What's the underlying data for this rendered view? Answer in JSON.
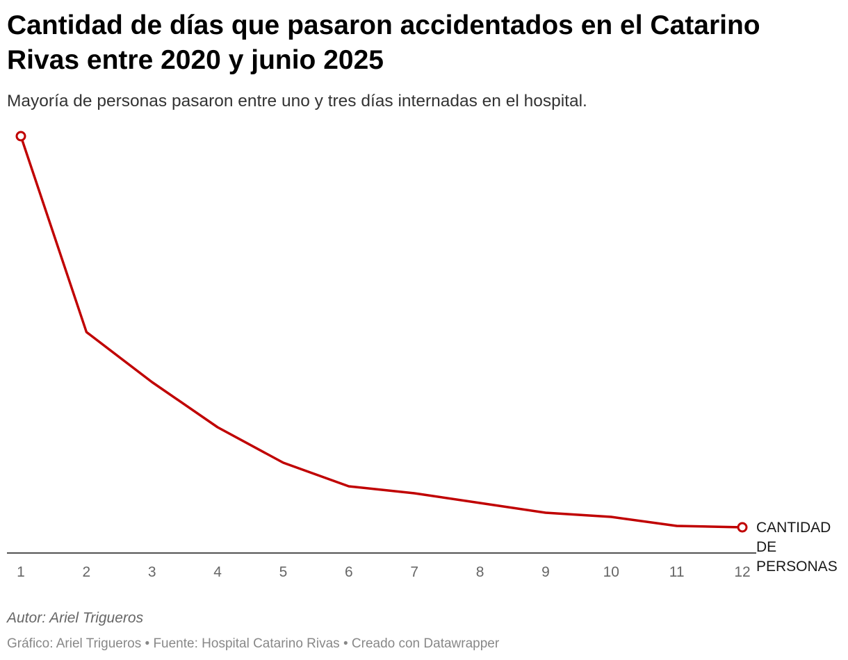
{
  "chart_data": {
    "type": "line",
    "title": "Cantidad de días que pasaron accidentados en el Catarino Rivas entre 2020 y junio 2025",
    "subtitle": "Mayoría de personas pasaron entre uno y tres días internadas en el hospital.",
    "x": [
      "1",
      "2",
      "3",
      "4",
      "5",
      "6",
      "7",
      "8",
      "9",
      "10",
      "11",
      "12"
    ],
    "series": [
      {
        "name": "CANTIDAD DE PERSONAS",
        "label_lines": [
          "CANTIDAD",
          "DE",
          "PERSONAS"
        ],
        "color": "#c00000",
        "values": [
          6000,
          3180,
          2460,
          1810,
          1300,
          960,
          860,
          720,
          580,
          520,
          390,
          370
        ]
      }
    ],
    "xlabel": "",
    "ylabel": "",
    "ylim": [
      0,
      6000
    ],
    "grid": false,
    "axis_color": "#181818"
  },
  "footer": {
    "author": "Autor: Ariel Trigueros",
    "credits": "Gráfico: Ariel Trigueros • Fuente: Hospital Catarino Rivas • Creado con Datawrapper"
  }
}
